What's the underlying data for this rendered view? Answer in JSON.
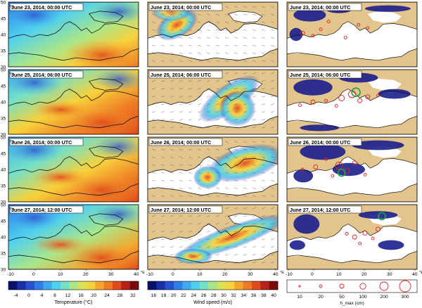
{
  "panels": [
    {
      "row": 0,
      "label": "June 23, 2014; 00:00 UTC"
    },
    {
      "row": 1,
      "label": "June 25, 2014; 06:00 UTC"
    },
    {
      "row": 2,
      "label": "June 26, 2014; 00:00 UTC"
    },
    {
      "row": 3,
      "label": "June 27, 2014; 12:00 UTC"
    }
  ],
  "axes": {
    "lat_ticks": [
      "50",
      "45",
      "40",
      "35",
      "30"
    ],
    "lat_unit": "°N",
    "lon_ticks": [
      "-10",
      "0",
      "10",
      "20",
      "30",
      "40"
    ],
    "lon_unit": "°E"
  },
  "colorbars": {
    "temperature": {
      "label": "Temperature (°C)",
      "ticks": [
        "-4",
        "0",
        "4",
        "8",
        "12",
        "16",
        "20",
        "24",
        "28",
        "32"
      ],
      "colors": [
        "#08126b",
        "#1a2ea8",
        "#2a4fd0",
        "#2f7ee8",
        "#3fa9f0",
        "#4fd0ee",
        "#73e0c8",
        "#a9e68a",
        "#dbe256",
        "#f7d23c",
        "#f5a62c",
        "#ee7a24",
        "#e04a1c",
        "#b82018",
        "#7a0a0c"
      ]
    },
    "wind": {
      "label": "Wind speed (m/s)",
      "ticks": [
        "16",
        "18",
        "20",
        "22",
        "24",
        "26",
        "28",
        "30",
        "32",
        "34",
        "36",
        "38",
        "40"
      ],
      "colors": [
        "#08126b",
        "#1a2ea8",
        "#2a4fd0",
        "#2f7ee8",
        "#3fa9f0",
        "#4fd0ee",
        "#73e0c8",
        "#a9e68a",
        "#dbe256",
        "#f7d23c",
        "#f5a62c",
        "#ee7a24",
        "#e04a1c",
        "#b82018",
        "#7a0a0c"
      ]
    },
    "hmax": {
      "label": "h_max (cm)",
      "ticks": [
        "10",
        "20",
        "50",
        "100",
        "200",
        "300"
      ]
    }
  },
  "colors": {
    "land": "#e2c48c",
    "sea_dark": "#1b1f8c",
    "sea_white": "#ffffff",
    "circle_red": "#e02020",
    "circle_green": "#1aa640",
    "coast": "#111111"
  }
}
